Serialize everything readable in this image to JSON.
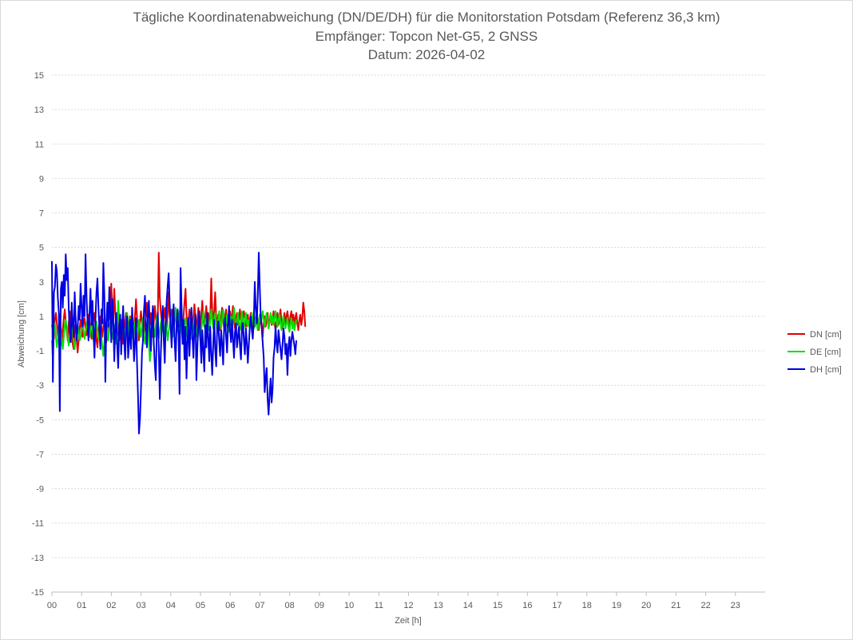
{
  "chart_data": {
    "type": "line",
    "title": "Tägliche Koordinatenabweichung (DN/DE/DH) für die Monitorstation Potsdam (Referenz 36,3 km)",
    "subtitle": "Empfänger: Topcon Net-G5, 2 GNSS",
    "date_line": "Datum: 2026-04-02",
    "xlabel": "Zeit [h]",
    "ylabel": "Abweichung [cm]",
    "xlim": [
      0,
      24
    ],
    "ylim": [
      -15,
      15
    ],
    "x_ticks": [
      "00",
      "01",
      "02",
      "03",
      "04",
      "05",
      "06",
      "07",
      "08",
      "09",
      "10",
      "11",
      "12",
      "13",
      "14",
      "15",
      "16",
      "17",
      "18",
      "19",
      "20",
      "21",
      "22",
      "23"
    ],
    "y_ticks": [
      15,
      13,
      11,
      9,
      7,
      5,
      3,
      1,
      -1,
      -3,
      -5,
      -7,
      -9,
      -11,
      -13,
      -15
    ],
    "grid": true,
    "legend_position": "right",
    "sample_interval_hours": 0.0333,
    "series": [
      {
        "name": "DN [cm]",
        "color": "#e00000",
        "values": [
          0.5,
          0.2,
          -0.3,
          0.8,
          1.2,
          0.6,
          -0.2,
          0.4,
          1.1,
          0.3,
          -0.5,
          0.2,
          0.9,
          1.4,
          0.7,
          0.1,
          -0.4,
          0.6,
          1.3,
          0.8,
          0.2,
          -0.6,
          -0.9,
          0.1,
          0.5,
          -0.3,
          -1.1,
          -0.4,
          0.3,
          0.8,
          0.2,
          -0.2,
          0.6,
          0.9,
          0.4,
          -0.1,
          0.5,
          1.1,
          0.7,
          0.2,
          -0.3,
          0.4,
          0.8,
          1.2,
          0.5,
          -0.4,
          -0.8,
          0.1,
          0.6,
          1.0,
          0.3,
          -0.2,
          0.4,
          0.9,
          0.2,
          -0.5,
          0.1,
          0.7,
          1.5,
          0.8,
          2.9,
          1.6,
          0.8,
          2.6,
          1.2,
          0.4,
          0.9,
          0.2,
          -0.4,
          0.3,
          0.8,
          0.2,
          -0.6,
          0.1,
          0.7,
          1.2,
          0.5,
          -0.3,
          0.4,
          1.0,
          0.6,
          0.1,
          -0.2,
          0.5,
          1.1,
          2.0,
          0.9,
          0.3,
          -0.4,
          0.6,
          1.3,
          0.7,
          0.2,
          -0.3,
          0.5,
          1.0,
          1.8,
          0.6,
          0.1,
          0.5,
          1.2,
          0.4,
          -0.2,
          0.7,
          1.6,
          0.9,
          0.4,
          1.1,
          4.7,
          2.1,
          1.3,
          0.6,
          0.2,
          0.9,
          1.5,
          0.8,
          0.3,
          1.2,
          2.4,
          1.1,
          0.5,
          1.4,
          0.8,
          0.2,
          0.7,
          1.3,
          0.6,
          1.1,
          0.4,
          0.9,
          1.6,
          0.7,
          0.2,
          1.0,
          1.8,
          2.6,
          1.1,
          0.3,
          0.8,
          1.4,
          0.6,
          1.2,
          0.5,
          0.9,
          1.7,
          1.0,
          0.3,
          0.8,
          1.5,
          0.7,
          0.2,
          1.1,
          1.9,
          0.8,
          0.4,
          1.0,
          1.6,
          0.7,
          1.2,
          0.5,
          0.9,
          3.2,
          1.4,
          0.6,
          1.3,
          2.4,
          1.0,
          0.4,
          1.1,
          0.6,
          0.2,
          0.9,
          1.5,
          0.8,
          0.3,
          1.0,
          1.4,
          0.6,
          0.2,
          0.8,
          1.3,
          0.5,
          1.1,
          1.6,
          0.7,
          0.3,
          0.9,
          1.2,
          0.5,
          0.8,
          1.4,
          0.6,
          0.2,
          1.0,
          1.3,
          0.7,
          0.4,
          0.9,
          1.1,
          0.5,
          0.8,
          1.2,
          0.3,
          0.6,
          1.0,
          0.4,
          0.9,
          1.3,
          0.6,
          0.2,
          0.8,
          1.1,
          0.5,
          -0.2,
          0.6,
          1.0,
          0.4,
          0.8,
          1.2,
          0.3,
          0.7,
          1.1,
          0.5,
          0.9,
          1.3,
          0.6,
          0.2,
          0.8,
          1.2,
          0.5,
          1.0,
          1.4,
          0.7,
          0.3,
          0.9,
          1.2,
          0.6,
          1.0,
          1.3,
          0.8,
          0.4,
          1.0,
          1.3,
          0.7,
          1.1,
          0.5,
          0.9,
          1.2,
          0.6,
          0.2,
          0.8,
          1.1,
          0.5,
          0.9,
          1.8,
          1.3,
          0.4
        ]
      },
      {
        "name": "DE [cm]",
        "color": "#00e000",
        "values": [
          -0.4,
          -1.5,
          0.2,
          0.6,
          -0.2,
          -0.8,
          -0.3,
          0.4,
          0.9,
          0.3,
          -0.6,
          -0.9,
          -0.2,
          0.5,
          0.8,
          0.4,
          -0.3,
          -0.7,
          -0.2,
          0.3,
          0.6,
          0.1,
          -0.5,
          -0.9,
          -0.3,
          0.2,
          0.5,
          0.1,
          -0.4,
          -0.2,
          0.3,
          0.6,
          0.2,
          -0.3,
          0.1,
          0.5,
          0.8,
          0.3,
          -0.2,
          0.2,
          0.6,
          0.1,
          -0.4,
          -0.1,
          0.4,
          0.7,
          0.2,
          -0.3,
          0.1,
          0.5,
          -0.2,
          -0.8,
          -1.3,
          -0.5,
          0.2,
          0.6,
          0.1,
          -0.4,
          0.3,
          0.7,
          0.2,
          -0.3,
          0.1,
          0.5,
          -0.1,
          -0.6,
          0.2,
          1.9,
          0.8,
          0.1,
          -0.4,
          0.3,
          0.8,
          0.2,
          -0.3,
          0.4,
          1.2,
          0.6,
          -0.2,
          0.3,
          0.9,
          0.4,
          -0.3,
          0.2,
          0.7,
          0.1,
          -0.5,
          0.2,
          0.8,
          0.3,
          -0.2,
          0.4,
          0.9,
          0.2,
          -0.6,
          -0.3,
          0.3,
          0.8,
          -0.5,
          -1.6,
          -0.9,
          0.2,
          0.7,
          0.3,
          -0.2,
          0.5,
          1.0,
          0.4,
          -0.3,
          0.2,
          0.6,
          0.9,
          0.4,
          -0.1,
          0.3,
          0.8,
          0.2,
          -0.4,
          0.1,
          0.6,
          1.0,
          0.4,
          -0.2,
          0.3,
          0.8,
          1.5,
          0.7,
          0.1,
          0.6,
          1.3,
          0.8,
          0.2,
          -0.4,
          0.1,
          0.6,
          0.9,
          0.3,
          -0.2,
          0.4,
          0.8,
          0.2,
          -0.3,
          0.1,
          0.5,
          0.9,
          0.4,
          -0.2,
          0.3,
          0.7,
          0.1,
          -0.4,
          0.2,
          0.8,
          1.3,
          0.6,
          0.1,
          0.5,
          1.1,
          0.6,
          0.2,
          0.7,
          1.4,
          0.8,
          0.3,
          0.9,
          1.2,
          0.6,
          0.2,
          0.8,
          1.3,
          0.7,
          0.3,
          0.9,
          1.4,
          0.8,
          0.2,
          0.6,
          1.1,
          0.5,
          0.1,
          0.6,
          1.0,
          0.4,
          0.8,
          1.5,
          0.9,
          0.3,
          0.7,
          1.2,
          0.6,
          0.2,
          0.8,
          1.3,
          0.7,
          0.3,
          0.9,
          1.2,
          0.6,
          0.4,
          0.8,
          0.5,
          0.9,
          1.2,
          0.7,
          0.3,
          0.6,
          1.0,
          0.5,
          0.2,
          0.7,
          1.1,
          0.6,
          0.9,
          1.3,
          0.8,
          0.4,
          0.9,
          1.2,
          0.7,
          0.3,
          0.8,
          1.2,
          0.6,
          1.0,
          0.5,
          0.9,
          1.3,
          0.7,
          0.4,
          0.8,
          1.1,
          0.6,
          0.2,
          0.7,
          1.0,
          0.5,
          0.3,
          0.6,
          0.9,
          0.4,
          0.1,
          0.6,
          0.9,
          0.3,
          0.7,
          0.2,
          0.5,
          0.8
        ]
      },
      {
        "name": "DH [cm]",
        "color": "#0000e0",
        "values": [
          4.2,
          -2.8,
          2.4,
          2.7,
          4.0,
          3.6,
          2.1,
          1.2,
          -4.5,
          2.6,
          3.0,
          1.5,
          3.4,
          2.2,
          4.6,
          3.1,
          3.8,
          1.4,
          0.2,
          -0.5,
          1.8,
          0.6,
          -0.2,
          2.4,
          0.9,
          -0.4,
          0.3,
          1.6,
          0.8,
          2.9,
          1.5,
          0.4,
          2.2,
          1.0,
          4.6,
          2.1,
          0.7,
          -0.4,
          1.2,
          2.6,
          0.5,
          1.9,
          0.2,
          -1.4,
          0.8,
          2.4,
          3.2,
          1.6,
          0.2,
          -0.9,
          1.4,
          0.6,
          4.1,
          2.2,
          -2.8,
          0.6,
          1.8,
          0.4,
          2.7,
          1.3,
          -0.5,
          2.0,
          0.9,
          -1.6,
          0.3,
          1.2,
          -0.8,
          -2.0,
          0.6,
          1.1,
          -1.2,
          0.4,
          1.6,
          -0.3,
          -1.5,
          0.2,
          1.0,
          -1.4,
          -0.6,
          0.8,
          -0.9,
          1.5,
          0.2,
          -1.6,
          -0.5,
          0.9,
          -1.8,
          -3.6,
          -5.8,
          -4.9,
          -3.2,
          -1.1,
          -0.4,
          1.3,
          2.2,
          0.6,
          -0.8,
          1.1,
          1.9,
          0.3,
          -1.0,
          0.5,
          1.6,
          -0.6,
          -1.9,
          -2.7,
          0.2,
          1.2,
          -0.9,
          -3.8,
          -1.2,
          0.4,
          1.6,
          -0.3,
          -1.7,
          0.6,
          1.9,
          2.8,
          3.5,
          1.8,
          0.4,
          -0.8,
          0.9,
          1.7,
          -0.4,
          -1.6,
          0.5,
          1.4,
          -0.2,
          -3.5,
          3.8,
          1.6,
          -0.6,
          0.8,
          -1.5,
          0.4,
          -2.6,
          -0.6,
          0.9,
          -1.3,
          0.3,
          1.5,
          -0.2,
          -1.4,
          0.4,
          1.1,
          -2.7,
          -0.9,
          0.6,
          1.3,
          -0.4,
          -1.7,
          0.2,
          -1.0,
          -2.2,
          0.5,
          -0.8,
          1.2,
          -0.3,
          -1.6,
          0.4,
          -1.2,
          -2.4,
          -0.6,
          0.8,
          -0.9,
          -1.9,
          0.3,
          0.7,
          -0.4,
          -1.3,
          0.2,
          -0.6,
          -1.8,
          0.3,
          0.9,
          -0.2,
          -1.1,
          0.5,
          1.6,
          0.2,
          -0.5,
          0.8,
          -0.3,
          -1.4,
          0.1,
          0.6,
          -0.8,
          -0.2,
          0.4,
          -0.7,
          -1.5,
          0.2,
          0.6,
          -0.4,
          -1.2,
          0.3,
          -0.5,
          -1.7,
          -0.6,
          0.4,
          1.0,
          0.2,
          -0.3,
          0.8,
          3.0,
          1.5,
          0.6,
          2.1,
          4.7,
          2.8,
          1.0,
          0.3,
          -0.5,
          -1.4,
          -3.4,
          -2.6,
          -2.0,
          -3.8,
          -4.7,
          -3.5,
          -2.6,
          -4.0,
          -3.2,
          -1.4,
          -0.8,
          0.4,
          -0.6,
          -1.1,
          0.2,
          -0.4,
          -0.9,
          -1.5,
          -0.7,
          0.3,
          -0.2,
          -1.2,
          -0.6,
          -2.4,
          -0.8,
          -0.2,
          -1.3,
          -0.4,
          0.1,
          -0.3,
          -0.7,
          -1.2,
          -0.4
        ]
      }
    ]
  }
}
